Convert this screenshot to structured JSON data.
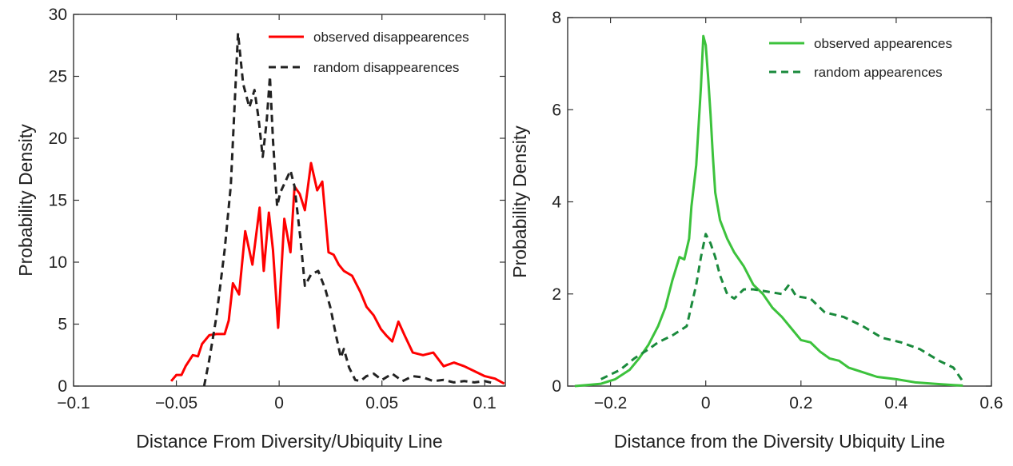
{
  "chart_data": [
    {
      "type": "line",
      "title": "",
      "xlabel": "Distance From Diversity/Ubiquity Line",
      "ylabel": "Probability Density",
      "xlim": [
        -0.1,
        0.11
      ],
      "ylim": [
        0,
        30
      ],
      "xticks": [
        -0.1,
        -0.05,
        0,
        0.05,
        0.1
      ],
      "xtick_labels": [
        "−0.1",
        "−0.05",
        "0",
        "0.05",
        "0.1"
      ],
      "yticks": [
        0,
        5,
        10,
        15,
        20,
        25,
        30
      ],
      "ytick_labels": [
        "0",
        "5",
        "10",
        "15",
        "20",
        "25",
        "30"
      ],
      "grid": false,
      "legend_position": "top-right",
      "series": [
        {
          "name": "observed disappearences",
          "color": "#ff0000",
          "style": "solid",
          "x": [
            -0.0525,
            -0.05,
            -0.0475,
            -0.0455,
            -0.042,
            -0.0395,
            -0.0375,
            -0.034,
            -0.0305,
            -0.0265,
            -0.0245,
            -0.0225,
            -0.0195,
            -0.0165,
            -0.013,
            -0.0095,
            -0.0075,
            -0.005,
            -0.003,
            -0.0005,
            0.0025,
            0.0055,
            0.0075,
            0.01,
            0.0125,
            0.0155,
            0.0185,
            0.021,
            0.024,
            0.0265,
            0.029,
            0.0315,
            0.0355,
            0.0395,
            0.0425,
            0.046,
            0.0495,
            0.052,
            0.055,
            0.058,
            0.061,
            0.065,
            0.07,
            0.075,
            0.08,
            0.085,
            0.09,
            0.095,
            0.1,
            0.105,
            0.1095
          ],
          "values": [
            0.4,
            0.9,
            0.9,
            1.6,
            2.5,
            2.4,
            3.4,
            4.1,
            4.2,
            4.2,
            5.3,
            8.3,
            7.4,
            12.5,
            9.8,
            14.4,
            9.3,
            14.0,
            11.0,
            4.7,
            13.5,
            10.8,
            16.1,
            15.5,
            14.2,
            18.0,
            15.8,
            16.5,
            10.8,
            10.6,
            9.8,
            9.3,
            8.9,
            7.6,
            6.4,
            5.7,
            4.6,
            4.1,
            3.6,
            5.2,
            4.1,
            2.7,
            2.5,
            2.7,
            1.6,
            1.9,
            1.6,
            1.2,
            0.8,
            0.6,
            0.2
          ]
        },
        {
          "name": "random disappearences",
          "color": "#222222",
          "style": "dashed",
          "x": [
            -0.0365,
            -0.034,
            -0.0305,
            -0.0265,
            -0.0235,
            -0.02,
            -0.0175,
            -0.0145,
            -0.012,
            -0.01,
            -0.008,
            -0.006,
            -0.0045,
            -0.003,
            -0.001,
            0.0005,
            0.003,
            0.0055,
            0.0075,
            0.0105,
            0.0125,
            0.0155,
            0.019,
            0.0225,
            0.025,
            0.0275,
            0.03,
            0.0315,
            0.034,
            0.037,
            0.0395,
            0.0425,
            0.046,
            0.05,
            0.055,
            0.06,
            0.065,
            0.07,
            0.075,
            0.08,
            0.085,
            0.09,
            0.095,
            0.1,
            0.105
          ],
          "values": [
            0.0,
            2.1,
            5.6,
            11.0,
            16.2,
            28.5,
            24.4,
            22.5,
            23.9,
            21.6,
            18.5,
            21.5,
            25.0,
            19.9,
            14.5,
            15.6,
            16.5,
            17.4,
            16.1,
            11.7,
            8.1,
            9.0,
            9.3,
            7.8,
            6.3,
            4.2,
            2.3,
            3.0,
            1.5,
            0.5,
            0.4,
            0.8,
            1.0,
            0.5,
            1.0,
            0.4,
            0.8,
            0.7,
            0.4,
            0.5,
            0.3,
            0.4,
            0.3,
            0.4,
            0.2
          ]
        }
      ]
    },
    {
      "type": "line",
      "title": "",
      "xlabel": "Distance from the Diversity Ubiquity Line",
      "ylabel": "Probability Density",
      "xlim": [
        -0.29,
        0.6
      ],
      "ylim": [
        0,
        8
      ],
      "xticks": [
        -0.2,
        0,
        0.2,
        0.4,
        0.6
      ],
      "xtick_labels": [
        "−0.2",
        "0",
        "0.2",
        "0.4",
        "0.6"
      ],
      "yticks": [
        0,
        2,
        4,
        6,
        8
      ],
      "ytick_labels": [
        "0",
        "2",
        "4",
        "6",
        "8"
      ],
      "grid": false,
      "legend_position": "top-right",
      "series": [
        {
          "name": "observed appearences",
          "color": "#3cc23c",
          "style": "solid",
          "x": [
            -0.275,
            -0.25,
            -0.22,
            -0.19,
            -0.16,
            -0.14,
            -0.12,
            -0.1,
            -0.085,
            -0.07,
            -0.055,
            -0.045,
            -0.035,
            -0.03,
            -0.02,
            -0.01,
            -0.005,
            0.0,
            0.005,
            0.01,
            0.015,
            0.02,
            0.03,
            0.045,
            0.06,
            0.08,
            0.1,
            0.12,
            0.14,
            0.16,
            0.18,
            0.2,
            0.22,
            0.24,
            0.26,
            0.28,
            0.3,
            0.33,
            0.36,
            0.4,
            0.44,
            0.48,
            0.52,
            0.54
          ],
          "values": [
            0.0,
            0.02,
            0.05,
            0.15,
            0.35,
            0.6,
            0.9,
            1.3,
            1.7,
            2.3,
            2.8,
            2.75,
            3.2,
            3.9,
            4.8,
            6.5,
            7.6,
            7.4,
            6.7,
            5.9,
            5.0,
            4.2,
            3.6,
            3.2,
            2.9,
            2.6,
            2.2,
            2.0,
            1.7,
            1.5,
            1.25,
            1.0,
            0.95,
            0.75,
            0.6,
            0.55,
            0.4,
            0.3,
            0.2,
            0.15,
            0.08,
            0.05,
            0.02,
            0.01
          ]
        },
        {
          "name": "random appearences",
          "color": "#1a8a3c",
          "style": "dashed",
          "x": [
            -0.22,
            -0.18,
            -0.15,
            -0.12,
            -0.1,
            -0.07,
            -0.04,
            -0.02,
            -0.01,
            0.0,
            0.01,
            0.02,
            0.03,
            0.045,
            0.06,
            0.08,
            0.1,
            0.13,
            0.16,
            0.175,
            0.19,
            0.22,
            0.25,
            0.29,
            0.33,
            0.37,
            0.41,
            0.45,
            0.49,
            0.52,
            0.54
          ],
          "values": [
            0.15,
            0.35,
            0.6,
            0.8,
            0.95,
            1.1,
            1.3,
            2.2,
            2.8,
            3.3,
            3.1,
            2.8,
            2.4,
            2.0,
            1.9,
            2.1,
            2.1,
            2.05,
            2.0,
            2.2,
            1.95,
            1.9,
            1.6,
            1.5,
            1.3,
            1.05,
            0.95,
            0.8,
            0.55,
            0.4,
            0.1
          ]
        }
      ]
    }
  ]
}
